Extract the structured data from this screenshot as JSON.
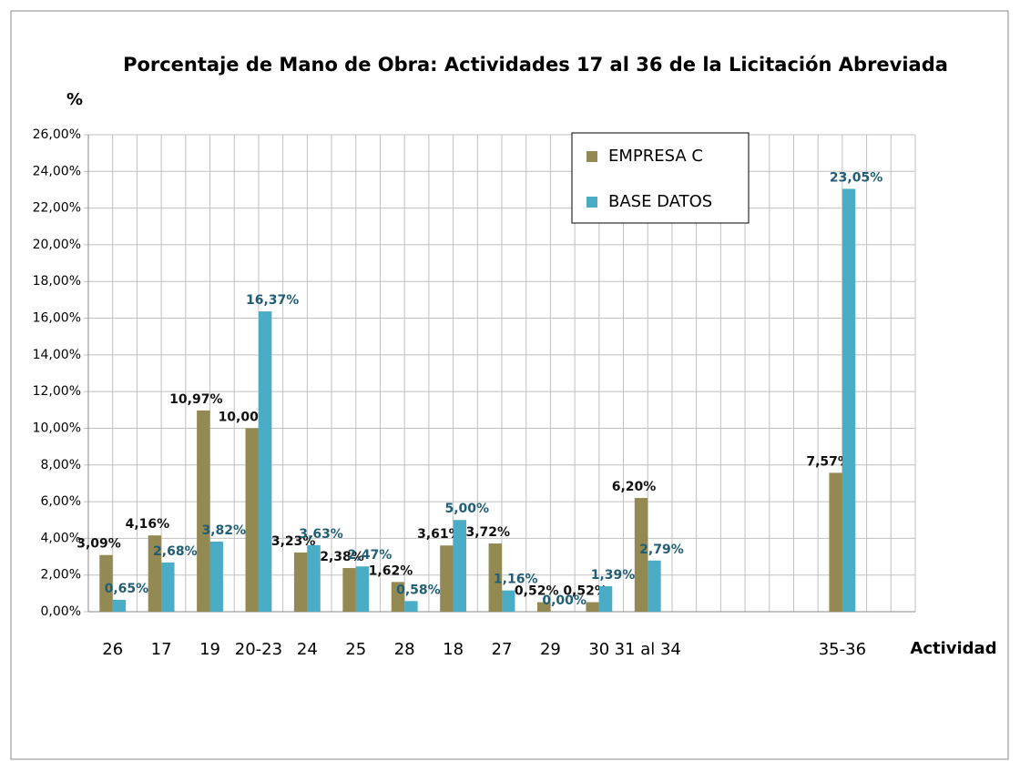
{
  "chart_data": {
    "type": "bar",
    "title": "Porcentaje de Mano de Obra: Actividades 17 al 36 de la Licitación Abreviada",
    "y_label": "%",
    "x_label": "Actividad",
    "categories": [
      "26",
      "17",
      "19",
      "20-23",
      "24",
      "25",
      "28",
      "18",
      "27",
      "29",
      "30",
      "31 al 34",
      null,
      null,
      null,
      "35-36",
      null
    ],
    "series": [
      {
        "name": "EMPRESA C",
        "color": "#938953",
        "values": [
          3.09,
          4.16,
          10.97,
          10.0,
          3.23,
          2.38,
          1.62,
          3.61,
          3.72,
          0.52,
          0.52,
          6.2,
          null,
          null,
          null,
          7.57,
          null
        ],
        "value_labels": [
          "3,09%",
          "4,16%",
          "10,97%",
          "10,00%",
          "3,23%",
          "2,38%",
          "1,62%",
          "3,61%",
          "3,72%",
          "0,52%",
          "0,52%",
          "6,20%",
          null,
          null,
          null,
          "7,57%",
          null
        ]
      },
      {
        "name": "BASE DATOS",
        "color": "#4bacc6",
        "values": [
          0.65,
          2.68,
          3.82,
          16.37,
          3.63,
          2.47,
          0.58,
          5.0,
          1.16,
          0.0,
          1.39,
          2.79,
          null,
          null,
          null,
          23.05,
          null
        ],
        "value_labels": [
          "0,65%",
          "2,68%",
          "3,82%",
          "16,37%",
          "3,63%",
          "2,47%",
          "0,58%",
          "5,00%",
          "1,16%",
          "0,00%",
          "1,39%",
          "2,79%",
          null,
          null,
          null,
          "23,05%",
          null
        ]
      }
    ],
    "ylim": [
      0,
      26
    ],
    "yticks": [
      {
        "value": 0,
        "label": "0,00%"
      },
      {
        "value": 2,
        "label": "2,00%"
      },
      {
        "value": 4,
        "label": "4,00%"
      },
      {
        "value": 6,
        "label": "6,00%"
      },
      {
        "value": 8,
        "label": "8,00%"
      },
      {
        "value": 10,
        "label": "10,00%"
      },
      {
        "value": 12,
        "label": "12,00%"
      },
      {
        "value": 14,
        "label": "14,00%"
      },
      {
        "value": 16,
        "label": "16,00%"
      },
      {
        "value": 18,
        "label": "18,00%"
      },
      {
        "value": 20,
        "label": "20,00%"
      },
      {
        "value": 22,
        "label": "22,00%"
      },
      {
        "value": 24,
        "label": "24,00%"
      },
      {
        "value": 26,
        "label": "26,00%"
      }
    ],
    "grid": true,
    "legend": "top-right"
  }
}
